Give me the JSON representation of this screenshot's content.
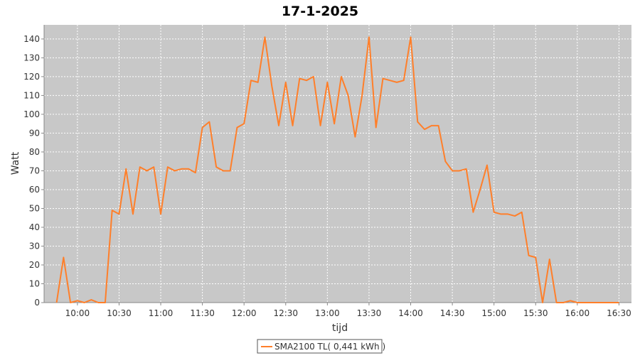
{
  "chart_data": {
    "type": "line",
    "title": "17-1-2025",
    "x_label": "tijd",
    "y_label": "Watt",
    "x": [
      "09:45",
      "09:50",
      "09:55",
      "10:00",
      "10:05",
      "10:10",
      "10:15",
      "10:20",
      "10:25",
      "10:30",
      "10:35",
      "10:40",
      "10:45",
      "10:50",
      "10:55",
      "11:00",
      "11:05",
      "11:10",
      "11:15",
      "11:20",
      "11:25",
      "11:30",
      "11:35",
      "11:40",
      "11:45",
      "11:50",
      "11:55",
      "12:00",
      "12:05",
      "12:10",
      "12:15",
      "12:20",
      "12:25",
      "12:30",
      "12:35",
      "12:40",
      "12:45",
      "12:50",
      "12:55",
      "13:00",
      "13:05",
      "13:10",
      "13:15",
      "13:20",
      "13:25",
      "13:30",
      "13:35",
      "13:40",
      "13:45",
      "13:50",
      "13:55",
      "14:00",
      "14:05",
      "14:10",
      "14:15",
      "14:20",
      "14:25",
      "14:30",
      "14:35",
      "14:40",
      "14:45",
      "14:50",
      "14:55",
      "15:00",
      "15:05",
      "15:10",
      "15:15",
      "15:20",
      "15:25",
      "15:30",
      "15:35",
      "15:40",
      "15:45",
      "15:50",
      "15:55",
      "16:00",
      "16:05",
      "16:10",
      "16:15",
      "16:20",
      "16:25",
      "16:30"
    ],
    "series": [
      {
        "name": "SMA2100 TL( 0,441 kWh )",
        "color": "#ff7f2a",
        "values": [
          0,
          24,
          0,
          1,
          0,
          1.5,
          0,
          0,
          49,
          47,
          71,
          47,
          72,
          70,
          72,
          47,
          72,
          70,
          71,
          71,
          69,
          93,
          96,
          72,
          70,
          70,
          93,
          95,
          118,
          117,
          141,
          115,
          94,
          117,
          94,
          119,
          118,
          120,
          94,
          117,
          95,
          120,
          110,
          88,
          110,
          141,
          93,
          119,
          118,
          117,
          118,
          141,
          96,
          92,
          94,
          94,
          75,
          70,
          70,
          71,
          48,
          60,
          73,
          48,
          47,
          47,
          46,
          48,
          25,
          24,
          0,
          23,
          0,
          0,
          1,
          0,
          0,
          0,
          0,
          0,
          0,
          0
        ]
      }
    ],
    "xlim": [
      "09:36",
      "16:39"
    ],
    "xticks": [
      "10:00",
      "10:30",
      "11:00",
      "11:30",
      "12:00",
      "12:30",
      "13:00",
      "13:30",
      "14:00",
      "14:30",
      "15:00",
      "15:30",
      "16:00",
      "16:30"
    ],
    "ylim": [
      0,
      147.5
    ],
    "yticks": [
      0,
      10,
      20,
      30,
      40,
      50,
      60,
      70,
      80,
      90,
      100,
      110,
      120,
      130,
      140
    ],
    "grid": true
  }
}
